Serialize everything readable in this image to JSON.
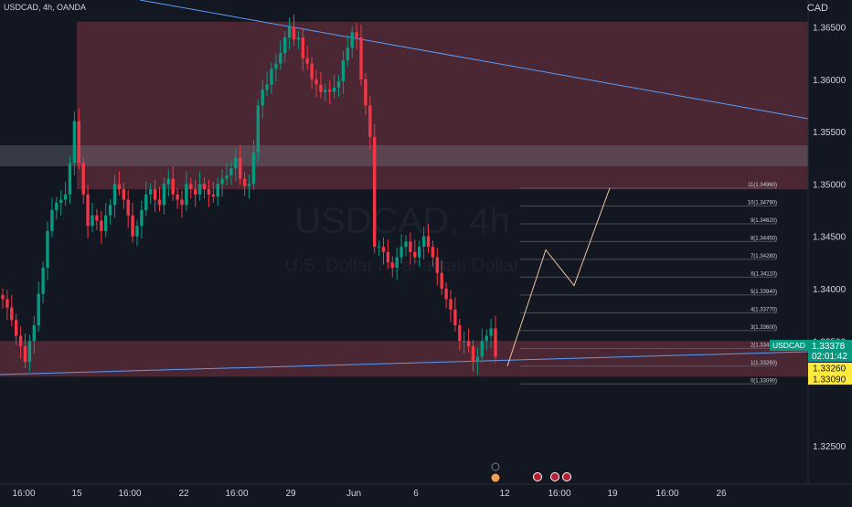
{
  "header": {
    "symbol_info": "USDCAD, 4h, OANDA",
    "currency": "CAD"
  },
  "watermark": {
    "title": "USDCAD, 4h",
    "subtitle": "U.S. Dollar / Canadian Dollar"
  },
  "colors": {
    "background": "#131722",
    "up": "#089981",
    "down": "#f23645",
    "trendline": "#5b9cf6",
    "zone": "#5d2e39",
    "grey_band": "#787b86",
    "projection": "#f0c29a",
    "fib_line": "#787b86",
    "price_tag": "#089981",
    "level_tag": "#ffeb3b"
  },
  "price_axis": {
    "ticks": [
      "1.36500",
      "1.36000",
      "1.35500",
      "1.35000",
      "1.34500",
      "1.34000",
      "1.33500",
      "1.32500"
    ]
  },
  "time_axis": {
    "ticks": [
      "16:00",
      "15",
      "16:00",
      "22",
      "16:00",
      "29",
      "Jun",
      "6",
      "12",
      "16:00",
      "19",
      "16:00",
      "26"
    ]
  },
  "price_tags": {
    "current": {
      "symbol": "USDCAD",
      "price": "1.33378",
      "countdown": "02:01:42"
    },
    "levels": [
      "1.33260",
      "1.33090"
    ]
  },
  "chart_data": {
    "type": "candlestick",
    "symbol": "USDCAD",
    "timeframe": "4h",
    "source": "OANDA",
    "y_range": [
      1.3225,
      1.369
    ],
    "fib_levels": [
      {
        "label": "0(1.33090)",
        "value": 1.3309
      },
      {
        "label": "1(1.33260)",
        "value": 1.3326
      },
      {
        "label": "2(1.33430)",
        "value": 1.3343
      },
      {
        "label": "3(1.33600)",
        "value": 1.336
      },
      {
        "label": "4(1.33770)",
        "value": 1.3377
      },
      {
        "label": "5(1.33940)",
        "value": 1.3394
      },
      {
        "label": "6(1.34110)",
        "value": 1.3411
      },
      {
        "label": "7(1.34280)",
        "value": 1.3428
      },
      {
        "label": "8(1.34450)",
        "value": 1.3445
      },
      {
        "label": "9(1.34620)",
        "value": 1.3462
      },
      {
        "label": "10(1.34790)",
        "value": 1.3479
      },
      {
        "label": "11(1.34960)",
        "value": 1.3496
      }
    ],
    "zones": [
      {
        "name": "resistance",
        "top": 1.3655,
        "bottom": 1.3495
      },
      {
        "name": "mid",
        "top": 1.3537,
        "bottom": 1.3517
      },
      {
        "name": "support",
        "top": 1.335,
        "bottom": 1.3316
      }
    ],
    "closes": [
      1.339,
      1.3382,
      1.337,
      1.3355,
      1.3345,
      1.333,
      1.335,
      1.3365,
      1.3395,
      1.342,
      1.3455,
      1.3475,
      1.3482,
      1.3485,
      1.349,
      1.352,
      1.356,
      1.352,
      1.349,
      1.346,
      1.347,
      1.3465,
      1.3455,
      1.347,
      1.348,
      1.35,
      1.3495,
      1.3485,
      1.347,
      1.345,
      1.346,
      1.3475,
      1.349,
      1.3495,
      1.3485,
      1.348,
      1.35,
      1.3505,
      1.349,
      1.3485,
      1.348,
      1.35,
      1.3495,
      1.349,
      1.35,
      1.3495,
      1.349,
      1.3488,
      1.35,
      1.3505,
      1.3508,
      1.3515,
      1.3525,
      1.3505,
      1.3498,
      1.35,
      1.353,
      1.3575,
      1.359,
      1.3595,
      1.361,
      1.3615,
      1.3625,
      1.364,
      1.365,
      1.3638,
      1.364,
      1.362,
      1.3615,
      1.36,
      1.3595,
      1.3588,
      1.359,
      1.3588,
      1.3592,
      1.3598,
      1.3618,
      1.363,
      1.3645,
      1.364,
      1.36,
      1.3575,
      1.3545,
      1.344,
      1.344,
      1.3435,
      1.3425,
      1.342,
      1.343,
      1.344,
      1.3445,
      1.3435,
      1.343,
      1.344,
      1.345,
      1.344,
      1.343,
      1.3415,
      1.34,
      1.339,
      1.338,
      1.3365,
      1.335,
      1.335,
      1.3345,
      1.333,
      1.3335,
      1.335,
      1.3355,
      1.3362,
      1.3335
    ],
    "projection_path": [
      {
        "t": "Jun 10",
        "price": 1.3326
      },
      {
        "t": "Jun 13",
        "price": 1.3437
      },
      {
        "t": "Jun 15",
        "price": 1.3403
      },
      {
        "t": "Jun 18",
        "price": 1.3496
      }
    ]
  }
}
